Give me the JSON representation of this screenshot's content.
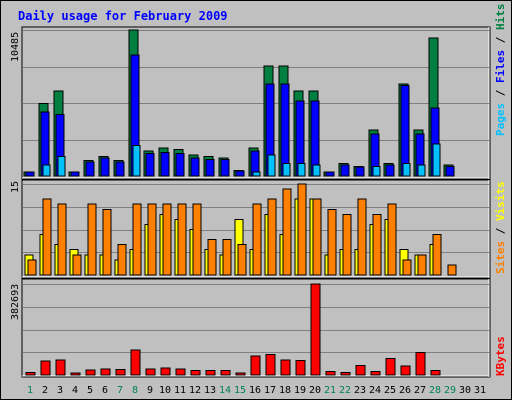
{
  "chart_data": [
    {
      "type": "bar",
      "title": "Daily usage for February 2009",
      "x": [
        1,
        2,
        3,
        4,
        5,
        6,
        7,
        8,
        9,
        10,
        11,
        12,
        13,
        14,
        15,
        16,
        17,
        18,
        19,
        20,
        21,
        22,
        23,
        24,
        25,
        26,
        27,
        28,
        29,
        30,
        31
      ],
      "weekend_days": [
        1,
        7,
        8,
        14,
        15,
        21,
        22,
        28,
        29
      ],
      "panel_top": {
        "ymax": 10485,
        "ymax_label": "10485",
        "legend": [
          "Pages",
          "Files",
          "Hits"
        ],
        "series": [
          {
            "name": "Hits",
            "color": "#008040",
            "values": [
              300,
              5200,
              6100,
              300,
              1100,
              1400,
              1100,
              10485,
              1800,
              2000,
              1900,
              1500,
              1400,
              1300,
              400,
              2000,
              7900,
              7900,
              6100,
              6100,
              300,
              900,
              700,
              3300,
              900,
              6600,
              3300,
              9900,
              800,
              0,
              0
            ]
          },
          {
            "name": "Files",
            "color": "#0000FF",
            "values": [
              270,
              4600,
              4400,
              270,
              1000,
              1300,
              1000,
              8700,
              1600,
              1700,
              1600,
              1300,
              1200,
              1200,
              350,
              1800,
              6600,
              6600,
              5400,
              5400,
              270,
              800,
              650,
              3000,
              800,
              6500,
              3000,
              4900,
              700,
              0,
              0
            ]
          },
          {
            "name": "Pages",
            "color": "#00C0FF",
            "values": [
              0,
              800,
              1400,
              0,
              0,
              0,
              0,
              2200,
              0,
              0,
              0,
              0,
              0,
              0,
              0,
              300,
              1500,
              900,
              900,
              800,
              0,
              0,
              0,
              700,
              0,
              900,
              800,
              2300,
              0,
              0,
              0
            ]
          }
        ]
      },
      "panel_mid": {
        "ymax": 15,
        "ymax_label": "15",
        "legend": [
          "Sites",
          "Visits"
        ],
        "series": [
          {
            "name": "Visits",
            "color": "#FFFF00",
            "values": [
              4,
              8,
              6,
              5,
              4,
              4,
              3,
              5,
              10,
              12,
              11,
              9,
              5,
              4,
              11,
              5,
              12,
              8,
              15,
              15,
              4,
              5,
              5,
              10,
              11,
              5,
              4,
              6,
              0,
              0,
              0
            ]
          },
          {
            "name": "Sites",
            "color": "#FF8000",
            "values": [
              3,
              15,
              14,
              4,
              14,
              13,
              6,
              14,
              14,
              14,
              14,
              14,
              7,
              7,
              6,
              14,
              15,
              17,
              18,
              15,
              13,
              12,
              15,
              12,
              14,
              3,
              4,
              8,
              2,
              0,
              0
            ]
          }
        ]
      },
      "panel_bot": {
        "ymax": 382693,
        "ymax_label": "382693",
        "legend": [
          "KBytes"
        ],
        "series": [
          {
            "name": "KBytes",
            "color": "#FF0000",
            "values": [
              10000,
              58000,
              63000,
              8000,
              22000,
              26000,
              24000,
              106000,
              26000,
              30000,
              26000,
              18000,
              18000,
              18000,
              8000,
              80000,
              86000,
              63000,
              60000,
              382693,
              14000,
              10000,
              40000,
              15000,
              70000,
              38000,
              95000,
              18000,
              0,
              0,
              0
            ]
          }
        ]
      }
    }
  ]
}
